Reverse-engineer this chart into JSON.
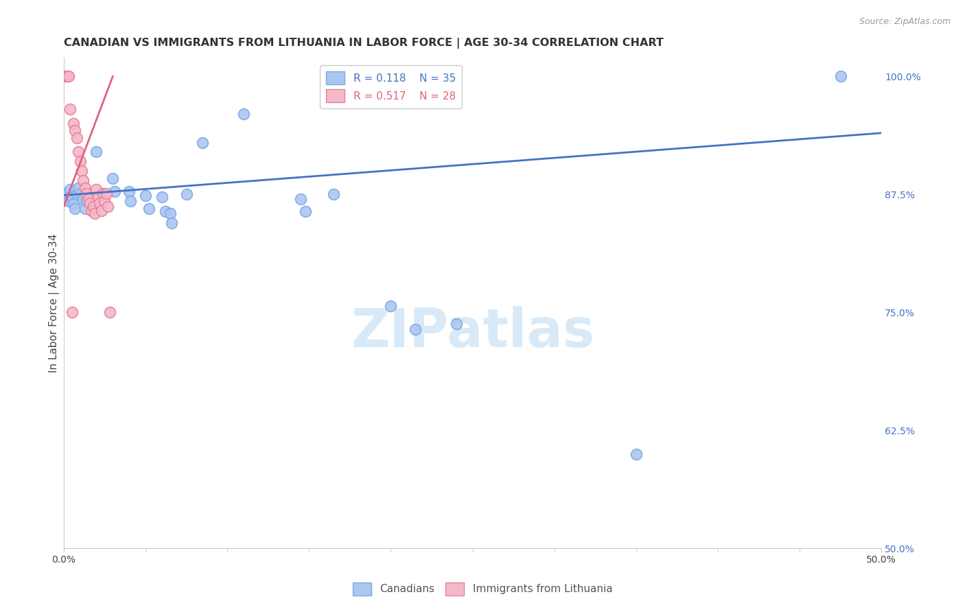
{
  "title": "CANADIAN VS IMMIGRANTS FROM LITHUANIA IN LABOR FORCE | AGE 30-34 CORRELATION CHART",
  "source": "Source: ZipAtlas.com",
  "ylabel": "In Labor Force | Age 30-34",
  "xlim": [
    0.0,
    0.5
  ],
  "ylim": [
    0.5,
    1.02
  ],
  "xticks": [
    0.0,
    0.05,
    0.1,
    0.15,
    0.2,
    0.25,
    0.3,
    0.35,
    0.4,
    0.45,
    0.5
  ],
  "ytick_positions": [
    0.5,
    0.625,
    0.75,
    0.875,
    1.0
  ],
  "yticklabels": [
    "50.0%",
    "62.5%",
    "75.0%",
    "87.5%",
    "100.0%"
  ],
  "legend_blue_r": "R = 0.118",
  "legend_blue_n": "N = 35",
  "legend_pink_r": "R = 0.517",
  "legend_pink_n": "N = 28",
  "blue_points": [
    [
      0.001,
      0.876
    ],
    [
      0.002,
      0.87
    ],
    [
      0.003,
      0.868
    ],
    [
      0.004,
      0.88
    ],
    [
      0.005,
      0.872
    ],
    [
      0.006,
      0.865
    ],
    [
      0.007,
      0.86
    ],
    [
      0.008,
      0.875
    ],
    [
      0.009,
      0.882
    ],
    [
      0.01,
      0.876
    ],
    [
      0.012,
      0.87
    ],
    [
      0.013,
      0.86
    ],
    [
      0.014,
      0.868
    ],
    [
      0.02,
      0.92
    ],
    [
      0.03,
      0.892
    ],
    [
      0.031,
      0.878
    ],
    [
      0.04,
      0.878
    ],
    [
      0.041,
      0.868
    ],
    [
      0.05,
      0.874
    ],
    [
      0.052,
      0.86
    ],
    [
      0.06,
      0.872
    ],
    [
      0.062,
      0.857
    ],
    [
      0.065,
      0.855
    ],
    [
      0.066,
      0.845
    ],
    [
      0.075,
      0.875
    ],
    [
      0.085,
      0.93
    ],
    [
      0.11,
      0.96
    ],
    [
      0.145,
      0.87
    ],
    [
      0.148,
      0.857
    ],
    [
      0.165,
      0.875
    ],
    [
      0.2,
      0.757
    ],
    [
      0.215,
      0.732
    ],
    [
      0.24,
      0.738
    ],
    [
      0.35,
      0.6
    ],
    [
      0.475,
      1.0
    ]
  ],
  "pink_points": [
    [
      0.001,
      1.0
    ],
    [
      0.002,
      1.0
    ],
    [
      0.003,
      1.0
    ],
    [
      0.004,
      0.965
    ],
    [
      0.006,
      0.95
    ],
    [
      0.007,
      0.943
    ],
    [
      0.008,
      0.935
    ],
    [
      0.009,
      0.92
    ],
    [
      0.01,
      0.91
    ],
    [
      0.011,
      0.9
    ],
    [
      0.012,
      0.89
    ],
    [
      0.013,
      0.882
    ],
    [
      0.014,
      0.876
    ],
    [
      0.015,
      0.87
    ],
    [
      0.016,
      0.866
    ],
    [
      0.017,
      0.858
    ],
    [
      0.018,
      0.862
    ],
    [
      0.019,
      0.855
    ],
    [
      0.02,
      0.88
    ],
    [
      0.021,
      0.872
    ],
    [
      0.022,
      0.866
    ],
    [
      0.023,
      0.858
    ],
    [
      0.024,
      0.876
    ],
    [
      0.025,
      0.868
    ],
    [
      0.026,
      0.876
    ],
    [
      0.027,
      0.862
    ],
    [
      0.028,
      0.75
    ],
    [
      0.005,
      0.75
    ]
  ],
  "blue_color": "#adc6f0",
  "blue_edge": "#7aaae8",
  "pink_color": "#f5b8c8",
  "pink_edge": "#e8809a",
  "blue_line_color": "#4472c4",
  "pink_line_color": "#e06080",
  "watermark_color": "#d8eaf8",
  "background_color": "#ffffff",
  "grid_color": "#dddddd"
}
